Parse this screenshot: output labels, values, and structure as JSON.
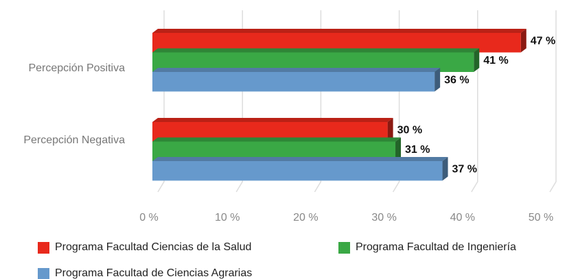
{
  "chart_data": {
    "type": "bar",
    "orientation": "horizontal",
    "categories": [
      "Percepción Positiva",
      "Percepción Negativa"
    ],
    "series": [
      {
        "name": "Programa Facultad Ciencias de la Salud",
        "color": "#e8291c",
        "values": [
          47,
          30
        ],
        "value_labels": [
          "47 %",
          "30 %"
        ]
      },
      {
        "name": "Programa Facultad de Ingeniería",
        "color": "#3aa845",
        "values": [
          41,
          31
        ],
        "value_labels": [
          "41 %",
          "31 %"
        ]
      },
      {
        "name": "Programa Facultad de Ciencias Agrarias",
        "color": "#6699cc",
        "values": [
          36,
          37
        ],
        "value_labels": [
          "36 %",
          "37 %"
        ]
      }
    ],
    "xlim": [
      0,
      50
    ],
    "xticks": [
      {
        "value": 0,
        "label": "0 %"
      },
      {
        "value": 10,
        "label": "10 %"
      },
      {
        "value": 20,
        "label": "20 %"
      },
      {
        "value": 30,
        "label": "30 %"
      },
      {
        "value": 40,
        "label": "40 %"
      },
      {
        "value": 50,
        "label": "50 %"
      }
    ],
    "grid": true
  }
}
